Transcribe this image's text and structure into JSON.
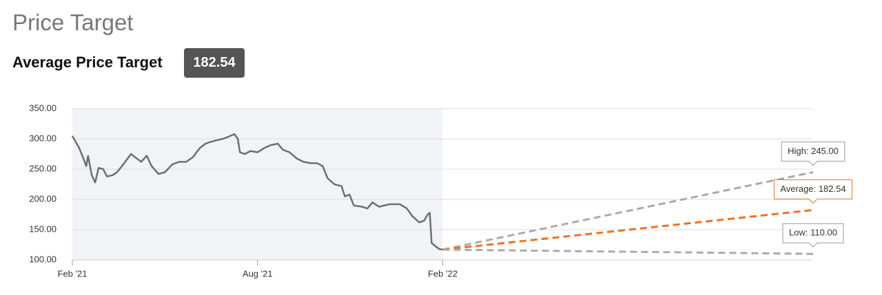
{
  "header": {
    "title": "Price Target",
    "label": "Average Price Target",
    "value": 182.54
  },
  "chart_data": {
    "type": "line",
    "xlim": [
      0,
      24
    ],
    "ylim": [
      100,
      350
    ],
    "xticks": [
      {
        "value": 0,
        "label": "Feb '21"
      },
      {
        "value": 6,
        "label": "Aug '21"
      },
      {
        "value": 12,
        "label": "Feb '22"
      }
    ],
    "yticks": [
      {
        "value": 100,
        "label": "100.00"
      },
      {
        "value": 150,
        "label": "150.00"
      },
      {
        "value": 200,
        "label": "200.00"
      },
      {
        "value": 250,
        "label": "250.00"
      },
      {
        "value": 300,
        "label": "300.00"
      },
      {
        "value": 350,
        "label": "350.00"
      }
    ],
    "grid": true,
    "series": [
      {
        "color": "#6e6e6e",
        "x": [
          0,
          0.22,
          0.34,
          0.45,
          0.51,
          0.63,
          0.74,
          0.85,
          1.0,
          1.12,
          1.3,
          1.45,
          1.68,
          1.9,
          2.08,
          2.23,
          2.41,
          2.57,
          2.79,
          3.0,
          3.24,
          3.46,
          3.69,
          3.91,
          4.13,
          4.31,
          4.47,
          4.69,
          4.87,
          5.03,
          5.25,
          5.36,
          5.43,
          5.59,
          5.77,
          6.0,
          6.22,
          6.44,
          6.66,
          6.82,
          7.04,
          7.26,
          7.49,
          7.71,
          7.93,
          8.11,
          8.27,
          8.49,
          8.72,
          8.83,
          8.98,
          9.12,
          9.39,
          9.56,
          9.72,
          9.94,
          10.28,
          10.61,
          10.84,
          11.02,
          11.24,
          11.4,
          11.51,
          11.58,
          11.64,
          11.78,
          11.89,
          12.0
        ],
        "values": [
          305,
          285,
          270,
          255,
          272,
          240,
          228,
          252,
          250,
          238,
          240,
          245,
          260,
          275,
          268,
          262,
          272,
          255,
          242,
          245,
          258,
          262,
          262,
          270,
          285,
          292,
          295,
          298,
          300,
          303,
          308,
          300,
          278,
          275,
          280,
          278,
          285,
          290,
          292,
          282,
          278,
          268,
          262,
          260,
          260,
          255,
          235,
          225,
          222,
          205,
          208,
          190,
          188,
          185,
          195,
          188,
          192,
          192,
          185,
          172,
          162,
          165,
          175,
          178,
          128,
          122,
          118,
          117
        ]
      },
      {
        "color": "#aaaaaa",
        "dash": true,
        "x": [
          12,
          24
        ],
        "values": [
          117,
          245
        ],
        "value_labels": [
          null,
          "High: 245.00"
        ]
      },
      {
        "color": "#f07020",
        "dash": true,
        "x": [
          12,
          24
        ],
        "values": [
          117,
          182.54
        ],
        "value_labels": [
          null,
          "Average: 182.54"
        ]
      },
      {
        "color": "#aaaaaa",
        "dash": true,
        "x": [
          12,
          24
        ],
        "values": [
          117,
          110
        ],
        "value_labels": [
          null,
          "Low: 110.00"
        ]
      }
    ]
  }
}
